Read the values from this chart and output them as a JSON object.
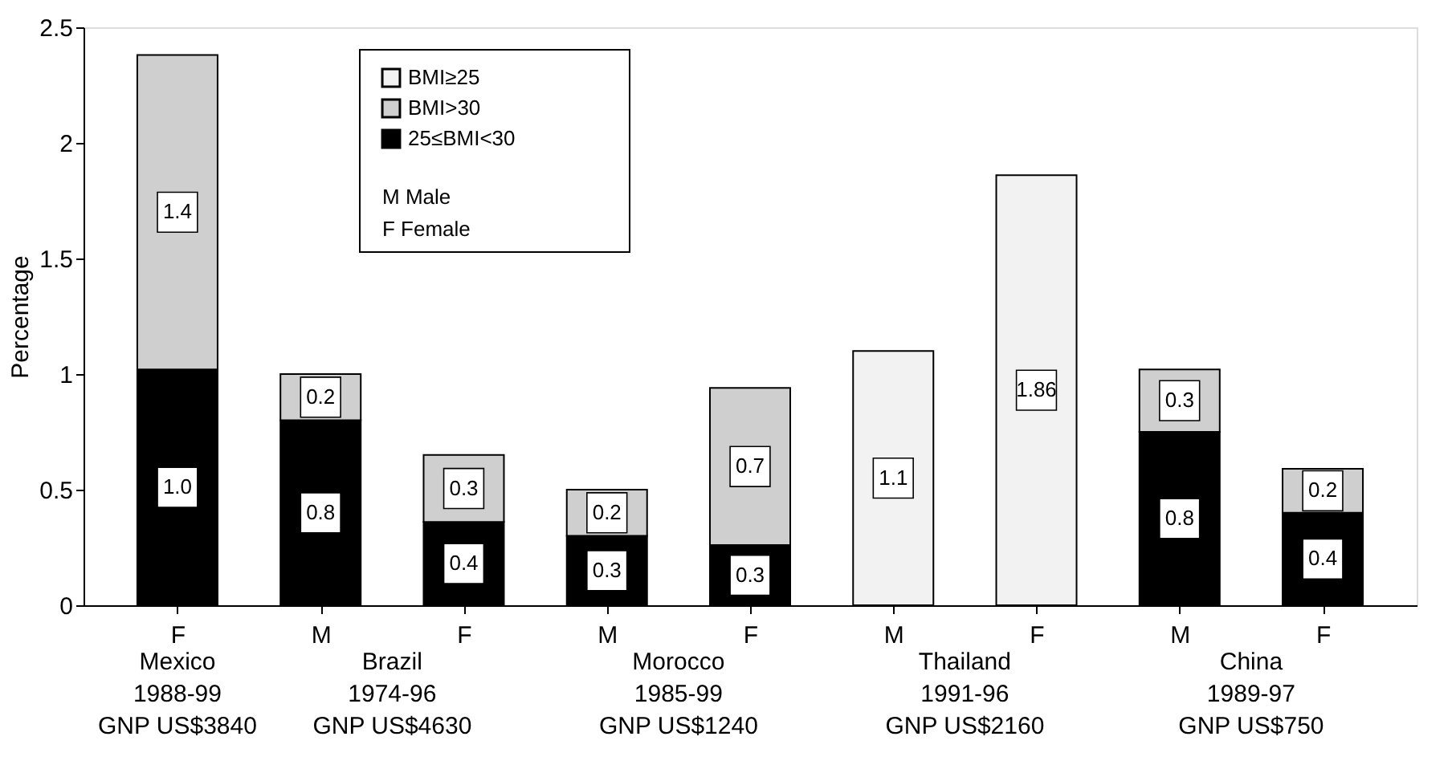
{
  "chart_data": {
    "type": "bar",
    "stacked": true,
    "ylabel": "Percentage",
    "categories": [
      "F",
      "M",
      "F",
      "M",
      "F",
      "M",
      "F",
      "M",
      "F"
    ],
    "series": [
      {
        "name": "25≤BMI<30",
        "color": "#000000",
        "values": [
          1.02,
          0.8,
          0.36,
          0.3,
          0.26,
          null,
          null,
          0.75,
          0.4
        ],
        "value_labels": [
          "1.0",
          "0.8",
          "0.4",
          "0.3",
          "0.3",
          null,
          null,
          "0.8",
          "0.4"
        ]
      },
      {
        "name": "BMI>30",
        "color": "#cfcfcf",
        "values": [
          1.36,
          0.2,
          0.29,
          0.2,
          0.68,
          null,
          null,
          0.27,
          0.19
        ],
        "value_labels": [
          "1.4",
          "0.2",
          "0.3",
          "0.2",
          "0.7",
          null,
          null,
          "0.3",
          "0.2"
        ]
      },
      {
        "name": "BMI≥25",
        "color": "#f2f2f2",
        "values": [
          null,
          null,
          null,
          null,
          null,
          1.1,
          1.86,
          null,
          null
        ],
        "value_labels": [
          null,
          null,
          null,
          null,
          null,
          "1.1",
          "1.86",
          null,
          null
        ]
      }
    ],
    "ylim": [
      0,
      2.5
    ],
    "yticks": [
      0,
      0.5,
      1,
      1.5,
      2,
      2.5
    ],
    "grid": false,
    "legend": "top left",
    "annotations": [
      "M  Male",
      "F  Female",
      "Mexico\n1988-99\nGNP US$3840",
      "Brazil\n1974-96\nGNP US$4630",
      "Morocco\n1985-99\nGNP US$1240",
      "Thailand\n1991-96\nGNP US$2160",
      "China\n1989-97\nGNP US$750"
    ]
  }
}
